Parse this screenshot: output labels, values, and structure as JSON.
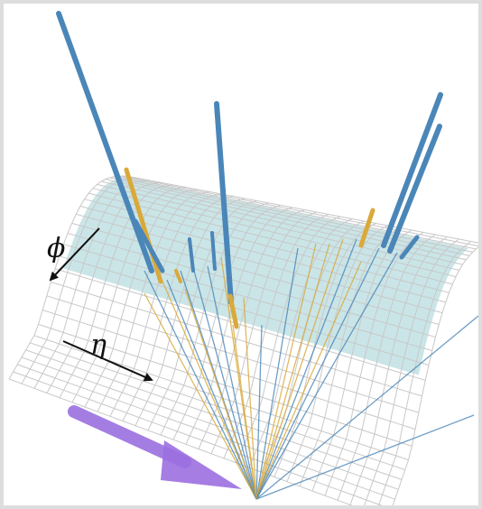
{
  "labels": {
    "phi": "ϕ",
    "eta": "η"
  }
}
